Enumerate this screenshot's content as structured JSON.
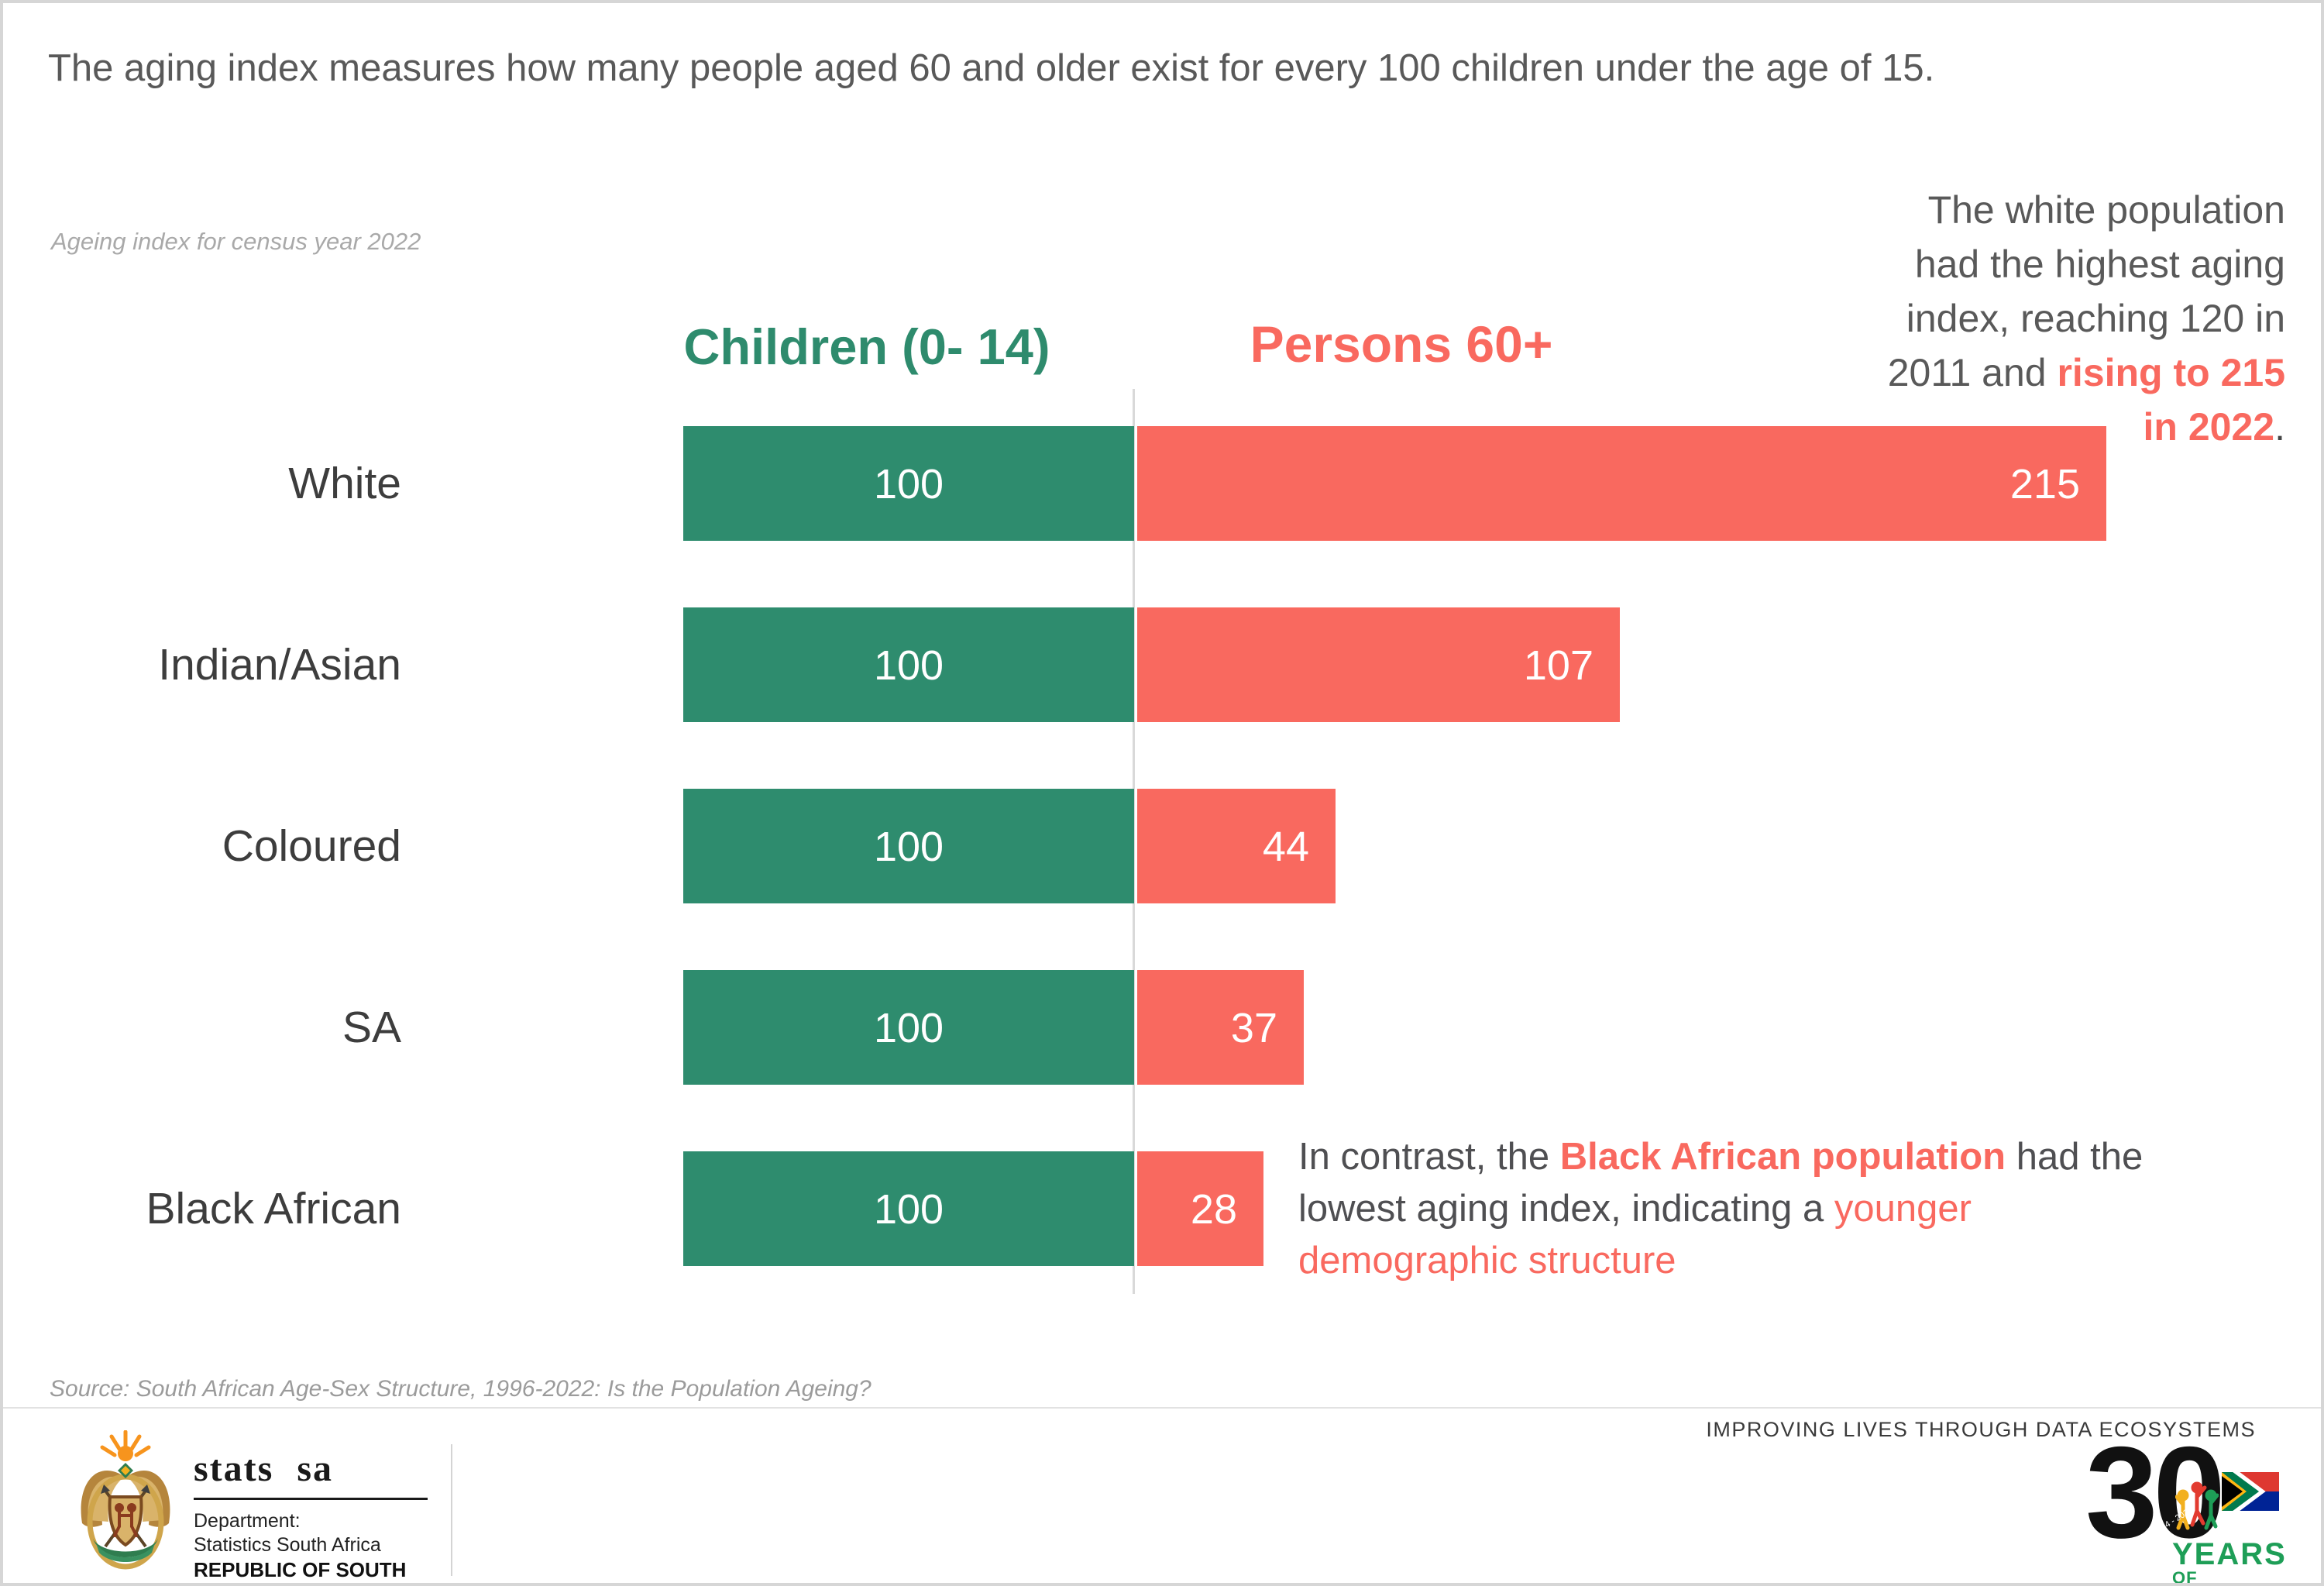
{
  "title": "The aging index measures how many people aged 60 and older exist for every 100 children under the age of 15.",
  "subtitle": "Ageing index for census year 2022",
  "chart_data": {
    "type": "bar",
    "orientation": "horizontal-diverging",
    "title": "Ageing index for census year 2022",
    "categories": [
      "White",
      "Indian/Asian",
      "Coloured",
      "SA",
      "Black African"
    ],
    "series": [
      {
        "name": "Children (0- 14)",
        "color": "#2e8c6e",
        "values": [
          100,
          100,
          100,
          100,
          100
        ]
      },
      {
        "name": "Persons 60+",
        "color": "#f9695f",
        "values": [
          215,
          107,
          44,
          37,
          28
        ]
      }
    ],
    "value_labels": true,
    "grid": "off",
    "legend_position": "column-headers-top"
  },
  "headers": {
    "children": "Children (0- 14)",
    "persons": "Persons 60+"
  },
  "annotation_right": {
    "lines": [
      [
        {
          "t": "The white population",
          "s": "gray"
        }
      ],
      [
        {
          "t": "had the highest aging",
          "s": "gray"
        }
      ],
      [
        {
          "t": "index, reaching 120 in",
          "s": "gray"
        }
      ],
      [
        {
          "t": "2011 and ",
          "s": "gray"
        },
        {
          "t": "rising to 215",
          "s": "redbold"
        }
      ],
      [
        {
          "t": "in 2022",
          "s": "redbold"
        },
        {
          "t": ".",
          "s": "dark"
        }
      ]
    ]
  },
  "annotation_bottom": {
    "lines": [
      [
        {
          "t": "In contrast, the ",
          "s": "gray"
        },
        {
          "t": "Black African population",
          "s": "redbold"
        },
        {
          "t": " had the",
          "s": "gray"
        }
      ],
      [
        {
          "t": "lowest aging index, indicating a ",
          "s": "gray"
        },
        {
          "t": "younger",
          "s": "red"
        }
      ],
      [
        {
          "t": "demographic structure",
          "s": "red"
        }
      ]
    ]
  },
  "source": "Source: South African Age-Sex Structure, 1996-2022: Is the Population Ageing?",
  "footer": {
    "stats_sa": {
      "wordmark": "stats sa",
      "dept_line1": "Department:",
      "dept_line2": "Statistics South Africa",
      "dept_line3": "REPUBLIC OF SOUTH AFRICA"
    },
    "tagline": "IMPROVING LIVES THROUGH DATA ECOSYSTEMS",
    "thirty_logo": {
      "number": "30",
      "years": "YEARS",
      "freedom": "OF FREEDOM",
      "arc_text": "South Africa 1994 - 2024"
    }
  },
  "colors": {
    "children_green": "#2e8c6e",
    "persons_red": "#f9695f",
    "title_gray": "#595959",
    "divider_gray": "#d9d9d9"
  }
}
